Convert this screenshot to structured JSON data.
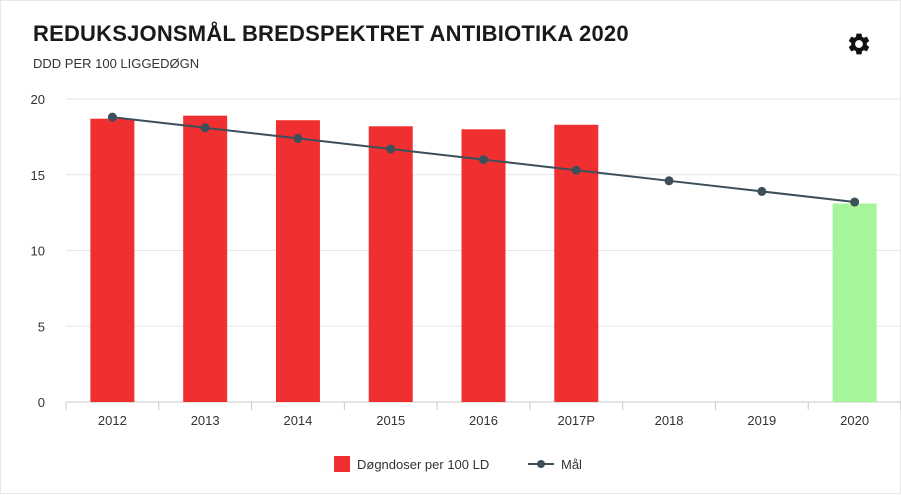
{
  "chart_data": {
    "type": "bar",
    "title": "REDUKSJONSMÅL BREDSPEKTRET ANTIBIOTIKA 2020",
    "subtitle": "DDD PER 100 LIGGEDØGN",
    "categories": [
      "2012",
      "2013",
      "2014",
      "2015",
      "2016",
      "2017P",
      "2018",
      "2019",
      "2020"
    ],
    "series": [
      {
        "name": "Døgndoser per 100 LD",
        "type": "bar",
        "color": "#f03030",
        "values": [
          18.7,
          18.9,
          18.6,
          18.2,
          18.0,
          18.3,
          null,
          null,
          13.1
        ],
        "point_colors": [
          "#f03030",
          "#f03030",
          "#f03030",
          "#f03030",
          "#f03030",
          "#f03030",
          null,
          null,
          "#a6f59a"
        ]
      },
      {
        "name": "Mål",
        "type": "line",
        "color": "#3d4f5a",
        "values": [
          18.8,
          18.1,
          17.4,
          16.7,
          16.0,
          15.3,
          14.6,
          13.9,
          13.2
        ]
      }
    ],
    "ylim": [
      0,
      20
    ],
    "yticks": [
      "0",
      "5",
      "10",
      "15",
      "20"
    ],
    "grid": true,
    "legend_position": "bottom-center"
  },
  "icons": {
    "settings": "gear-icon"
  }
}
